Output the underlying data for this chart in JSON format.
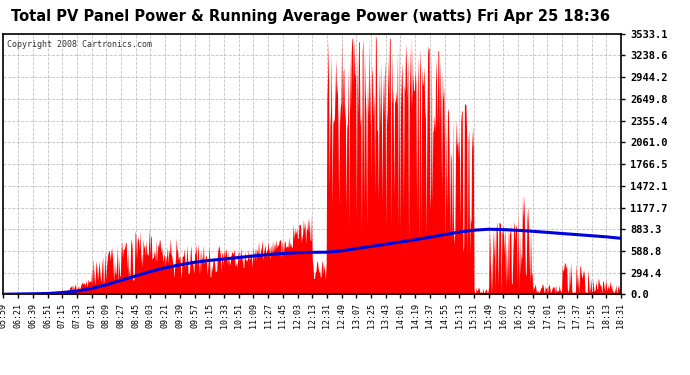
{
  "title": "Total PV Panel Power & Running Average Power (watts) Fri Apr 25 18:36",
  "copyright": "Copyright 2008 Cartronics.com",
  "background_color": "#ffffff",
  "plot_bg_color": "#ffffff",
  "grid_color": "#bbbbbb",
  "bar_color": "#ff0000",
  "line_color": "#0000dd",
  "yticks": [
    0.0,
    294.4,
    588.8,
    883.3,
    1177.7,
    1472.1,
    1766.5,
    2061.0,
    2355.4,
    2649.8,
    2944.2,
    3238.6,
    3533.1
  ],
  "ymax": 3533.1,
  "time_labels": [
    "05:59",
    "06:21",
    "06:39",
    "06:51",
    "07:15",
    "07:33",
    "07:51",
    "08:09",
    "08:27",
    "08:45",
    "09:03",
    "09:21",
    "09:39",
    "09:57",
    "10:15",
    "10:33",
    "10:51",
    "11:09",
    "11:27",
    "11:45",
    "12:03",
    "12:13",
    "12:31",
    "12:49",
    "13:07",
    "13:25",
    "13:43",
    "14:01",
    "14:19",
    "14:37",
    "14:55",
    "15:13",
    "15:31",
    "15:49",
    "16:07",
    "16:25",
    "16:43",
    "17:01",
    "17:19",
    "17:37",
    "17:55",
    "18:13",
    "18:31"
  ]
}
